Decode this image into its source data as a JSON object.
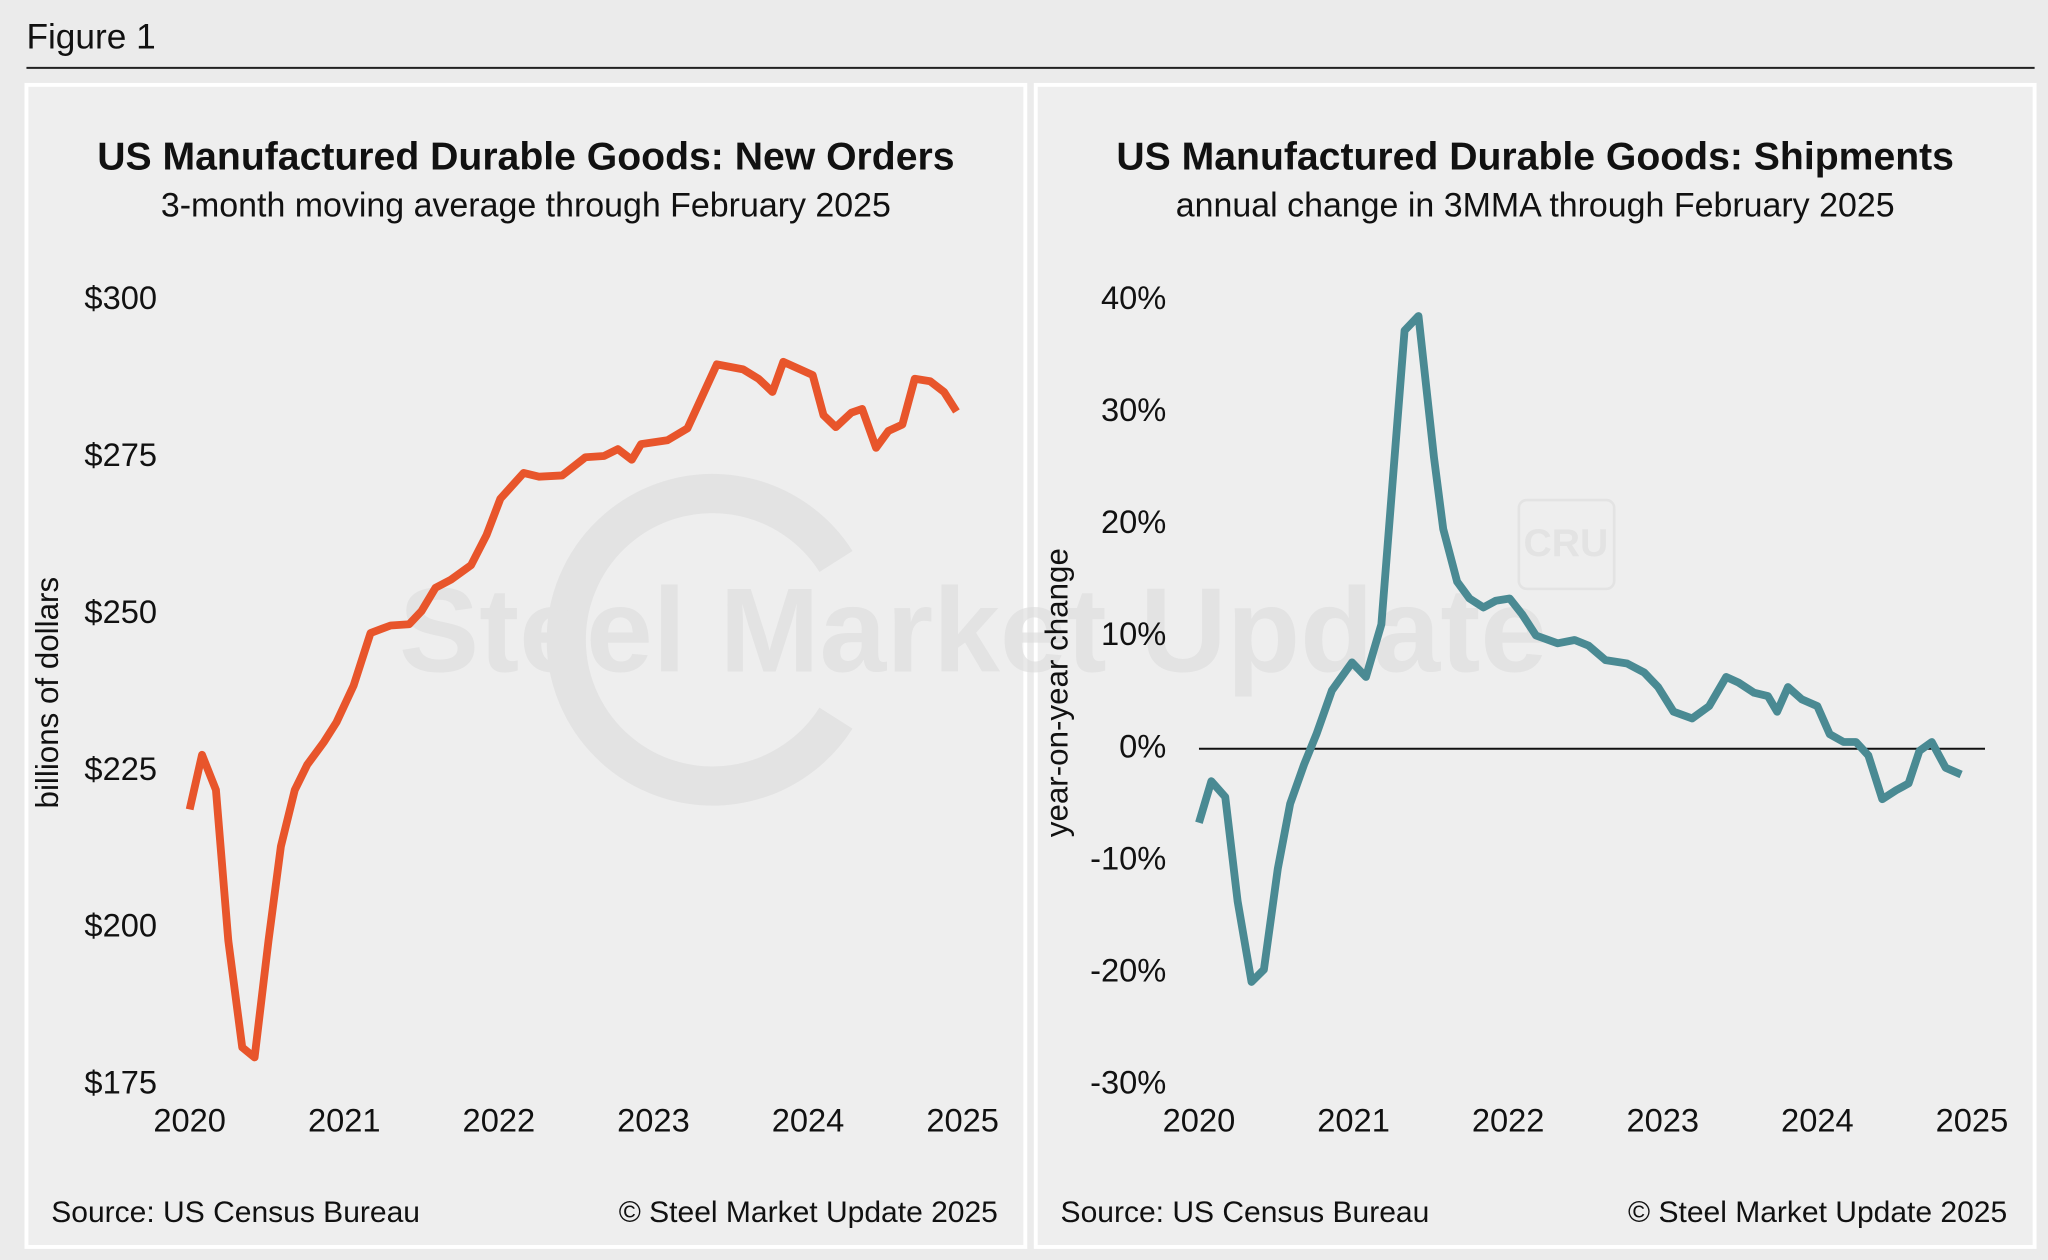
{
  "figure_label": "Figure 1",
  "watermark": {
    "text": "Steel Market Update",
    "logo": "CRU"
  },
  "chart_data": [
    {
      "type": "line",
      "title": "US Manufactured Durable Goods: New Orders",
      "subtitle": "3-month moving average through February 2025",
      "y_label": "billions of dollars",
      "source": "Source: US Census Bureau",
      "copyright": "© Steel Market Update 2025",
      "color": "#e8552b",
      "x": [
        2020.0,
        2020.08,
        2020.17,
        2020.25,
        2020.34,
        2020.42,
        2020.51,
        2020.59,
        2020.68,
        2020.76,
        2020.87,
        2020.95,
        2021.06,
        2021.17,
        2021.3,
        2021.42,
        2021.5,
        2021.59,
        2021.69,
        2021.82,
        2021.92,
        2022.01,
        2022.16,
        2022.26,
        2022.41,
        2022.56,
        2022.68,
        2022.77,
        2022.86,
        2022.92,
        2023.09,
        2023.22,
        2023.41,
        2023.58,
        2023.68,
        2023.77,
        2023.84,
        2024.03,
        2024.1,
        2024.18,
        2024.28,
        2024.35,
        2024.44,
        2024.52,
        2024.61,
        2024.69,
        2024.79,
        2024.88,
        2024.96
      ],
      "values": [
        218.9,
        227.6,
        222,
        198,
        181,
        179.4,
        198,
        213,
        222,
        226,
        229.7,
        232.8,
        238.6,
        247,
        248.2,
        248.4,
        250.5,
        254.2,
        255.5,
        257.8,
        262.6,
        268.4,
        272.5,
        271.9,
        272.1,
        275,
        275.2,
        276.3,
        274.6,
        277.1,
        277.7,
        279.6,
        289.8,
        289,
        287.5,
        285.4,
        290.2,
        288.1,
        281.7,
        279.8,
        282.1,
        282.7,
        276.5,
        279.2,
        280.2,
        287.5,
        287.1,
        285.4,
        282.3
      ],
      "xlim": [
        2020,
        2025
      ],
      "xticks": [
        2020,
        2021,
        2022,
        2023,
        2024,
        2025
      ],
      "ylim": [
        175,
        300
      ],
      "yticks": [
        {
          "value": 175,
          "label": "$175"
        },
        {
          "value": 200,
          "label": "$200"
        },
        {
          "value": 225,
          "label": "$225"
        },
        {
          "value": 250,
          "label": "$250"
        },
        {
          "value": 275,
          "label": "$275"
        },
        {
          "value": 300,
          "label": "$300"
        }
      ],
      "zero_line": false
    },
    {
      "type": "line",
      "title": "US Manufactured Durable Goods: Shipments",
      "subtitle": "annual change in 3MMA through February 2025",
      "y_label": "year-on-year change",
      "source": "Source: US Census Bureau",
      "copyright": "© Steel Market Update 2025",
      "color": "#4a8a93",
      "x": [
        2020.0,
        2020.08,
        2020.17,
        2020.25,
        2020.34,
        2020.42,
        2020.51,
        2020.59,
        2020.68,
        2020.76,
        2020.86,
        2020.99,
        2021.08,
        2021.18,
        2021.33,
        2021.42,
        2021.52,
        2021.58,
        2021.67,
        2021.75,
        2021.84,
        2021.92,
        2022.01,
        2022.09,
        2022.18,
        2022.32,
        2022.43,
        2022.52,
        2022.63,
        2022.77,
        2022.88,
        2022.97,
        2023.07,
        2023.19,
        2023.3,
        2023.41,
        2023.49,
        2023.59,
        2023.68,
        2023.74,
        2023.81,
        2023.9,
        2024.0,
        2024.08,
        2024.17,
        2024.25,
        2024.33,
        2024.42,
        2024.51,
        2024.59,
        2024.66,
        2024.74,
        2024.83,
        2024.93
      ],
      "values": [
        -6.6,
        -2.9,
        -4.3,
        -13.6,
        -20.8,
        -19.7,
        -10.7,
        -4.9,
        -1.4,
        1.3,
        5.2,
        7.7,
        6.4,
        11.1,
        37.3,
        38.6,
        26.0,
        19.6,
        14.9,
        13.4,
        12.6,
        13.2,
        13.4,
        12.0,
        10.1,
        9.4,
        9.7,
        9.2,
        7.9,
        7.6,
        6.8,
        5.5,
        3.3,
        2.7,
        3.8,
        6.4,
        5.9,
        5.0,
        4.7,
        3.3,
        5.5,
        4.4,
        3.8,
        1.3,
        0.6,
        0.6,
        -0.6,
        -4.5,
        -3.7,
        -3.1,
        -0.2,
        0.6,
        -1.7,
        -2.3
      ],
      "xlim": [
        2020,
        2025
      ],
      "xticks": [
        2020,
        2021,
        2022,
        2023,
        2024,
        2025
      ],
      "ylim": [
        -30,
        40
      ],
      "yticks": [
        {
          "value": -30,
          "label": "-30%"
        },
        {
          "value": -20,
          "label": "-20%"
        },
        {
          "value": -10,
          "label": "-10%"
        },
        {
          "value": 0,
          "label": "0%"
        },
        {
          "value": 10,
          "label": "10%"
        },
        {
          "value": 20,
          "label": "20%"
        },
        {
          "value": 30,
          "label": "30%"
        },
        {
          "value": 40,
          "label": "40%"
        }
      ],
      "zero_line": true
    }
  ]
}
